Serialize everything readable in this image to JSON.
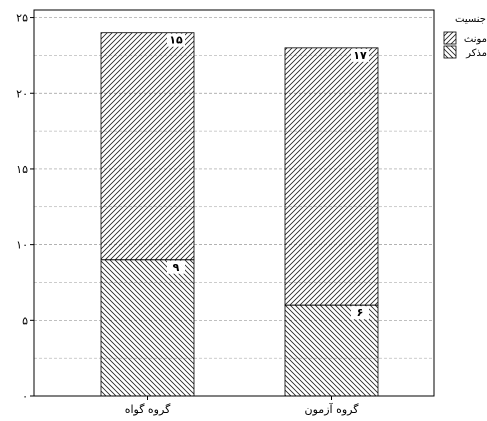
{
  "chart_data": {
    "type": "bar",
    "stacked": true,
    "categories": [
      "گروه گواه",
      "گروه آزمون"
    ],
    "series": [
      {
        "name": "مذکر",
        "values": [
          9,
          6
        ],
        "value_labels": [
          "۹",
          "۶"
        ],
        "pattern": "hatch-backslash"
      },
      {
        "name": "مونث",
        "values": [
          15,
          17
        ],
        "value_labels": [
          "۱۵",
          "۱۷"
        ],
        "pattern": "hatch-slash"
      }
    ],
    "ylim": [
      0,
      25.5
    ],
    "yticks": [
      0,
      5,
      10,
      15,
      20,
      25
    ],
    "ytick_labels": [
      "۰",
      "۵",
      "۱۰",
      "۱۵",
      "۲۰",
      "۲۵"
    ],
    "minor_gridlines": [
      2.5,
      7.5,
      12.5,
      17.5,
      22.5
    ],
    "grid": true,
    "legend_title": "جنسیت",
    "legend_entries": [
      {
        "label": "مونث",
        "pattern": "hatch-slash"
      },
      {
        "label": "مذکر",
        "pattern": "hatch-backslash"
      }
    ],
    "legend_position": "top-right",
    "colors": {
      "bar_fill": "#ffffff",
      "hatch": "#222222",
      "frame": "#000000",
      "grid": "#999999"
    }
  }
}
